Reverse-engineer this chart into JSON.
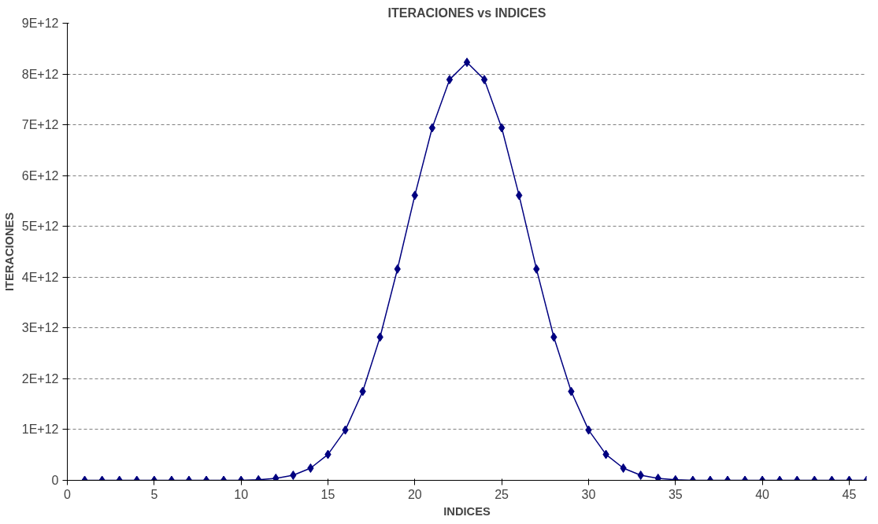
{
  "chart_data": {
    "type": "line",
    "title": "ITERACIONES vs INDICES",
    "xlabel": "INDICES",
    "ylabel": "ITERACIONES",
    "x": [
      1,
      2,
      3,
      4,
      5,
      6,
      7,
      8,
      9,
      10,
      11,
      12,
      13,
      14,
      15,
      16,
      17,
      18,
      19,
      20,
      21,
      22,
      23,
      24,
      25,
      26,
      27,
      28,
      29,
      30,
      31,
      32,
      33,
      34,
      35,
      36,
      37,
      38,
      39,
      40,
      41,
      42,
      43,
      44,
      45,
      46
    ],
    "series": [
      {
        "color": "#000080",
        "values": [
          0,
          0,
          0,
          0,
          0,
          0,
          0,
          0,
          0,
          0,
          10000000000,
          40000000000,
          100000000000,
          240000000000,
          510000000000,
          990000000000,
          1750000000000,
          2820000000000,
          4160000000000,
          5610000000000,
          6940000000000,
          7890000000000,
          8230000000000,
          7890000000000,
          6940000000000,
          5610000000000,
          4160000000000,
          2820000000000,
          1750000000000,
          990000000000,
          510000000000,
          240000000000,
          100000000000,
          40000000000,
          10000000000,
          0,
          0,
          0,
          0,
          0,
          0,
          0,
          0,
          0,
          0,
          0
        ]
      }
    ],
    "xlim": [
      0,
      46
    ],
    "xticks": [
      0,
      5,
      10,
      15,
      20,
      25,
      30,
      35,
      40,
      45
    ],
    "ylim": [
      0,
      9000000000000
    ],
    "yticks": [
      0,
      {
        "value": 1000000000000,
        "label": "1E+12"
      },
      {
        "value": 2000000000000,
        "label": "2E+12"
      },
      {
        "value": 3000000000000,
        "label": "3E+12"
      },
      {
        "value": 4000000000000,
        "label": "4E+12"
      },
      {
        "value": 5000000000000,
        "label": "5E+12"
      },
      {
        "value": 6000000000000,
        "label": "6E+12"
      },
      {
        "value": 7000000000000,
        "label": "7E+12"
      },
      {
        "value": 8000000000000,
        "label": "8E+12"
      },
      {
        "value": 9000000000000,
        "label": "9E+12"
      }
    ],
    "grid": "y",
    "marker": "diamond",
    "line_style": "solid"
  }
}
